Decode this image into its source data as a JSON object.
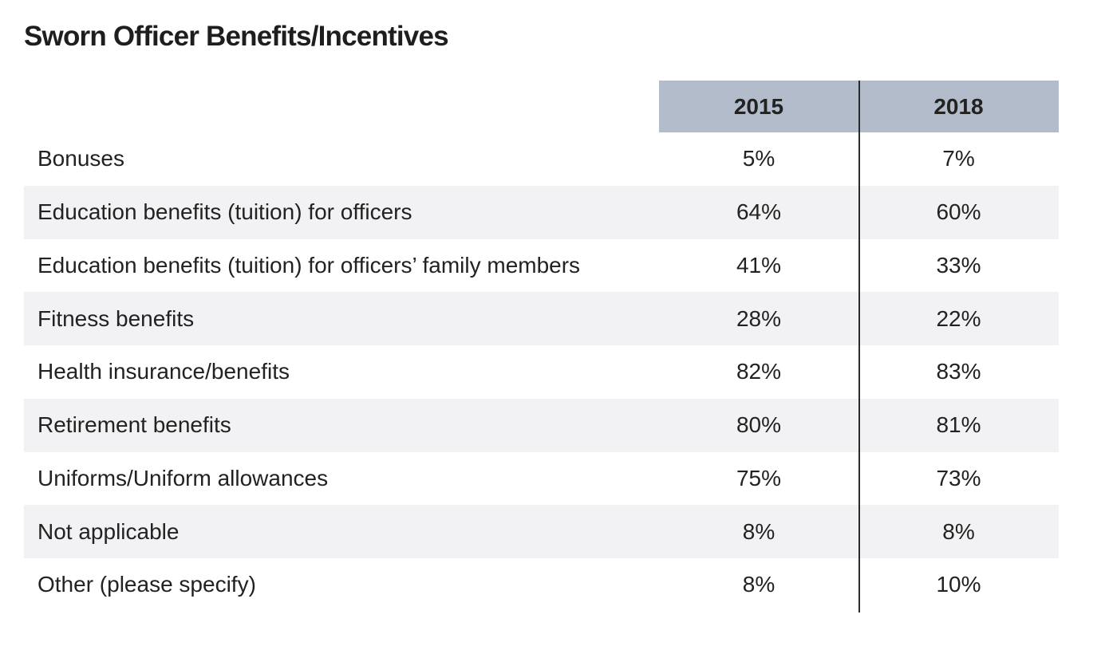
{
  "chart_data": {
    "type": "table",
    "title": "Sworn Officer Benefits/Incentives",
    "columns": [
      "2015",
      "2018"
    ],
    "rows": [
      {
        "label": "Bonuses",
        "values": [
          "5%",
          "7%"
        ]
      },
      {
        "label": "Education benefits (tuition) for officers",
        "values": [
          "64%",
          "60%"
        ]
      },
      {
        "label": "Education benefits (tuition) for officers’ family members",
        "values": [
          "41%",
          "33%"
        ]
      },
      {
        "label": "Fitness benefits",
        "values": [
          "28%",
          "22%"
        ]
      },
      {
        "label": "Health insurance/benefits",
        "values": [
          "82%",
          "83%"
        ]
      },
      {
        "label": "Retirement benefits",
        "values": [
          "80%",
          "81%"
        ]
      },
      {
        "label": "Uniforms/Uniform allowances",
        "values": [
          "75%",
          "73%"
        ]
      },
      {
        "label": "Not applicable",
        "values": [
          "8%",
          "8%"
        ]
      },
      {
        "label": "Other (please specify)",
        "values": [
          "8%",
          "10%"
        ]
      }
    ]
  },
  "colors": {
    "header_bg": "#b3bccb",
    "row_shade": "#f2f2f4",
    "divider": "#2b2b2b",
    "text": "#222222"
  }
}
